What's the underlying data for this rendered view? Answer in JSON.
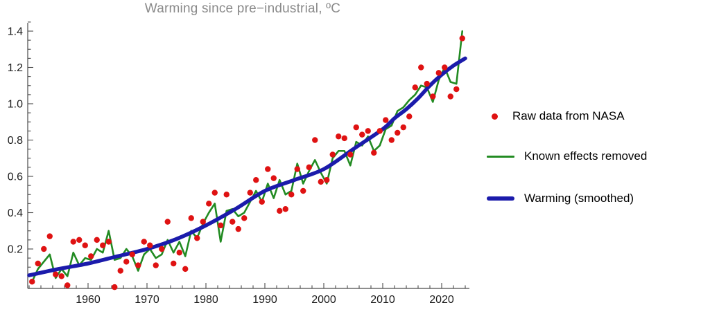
{
  "chart_data": {
    "type": "line+scatter",
    "title": "Warming since pre−industrial, ºC",
    "title_color": "#8a8a8a",
    "background": "#ffffff",
    "axis_color": "#4a4a4a",
    "tick_label_color": "#1c1c1c",
    "x_axis": {
      "range": [
        1949,
        2025
      ],
      "major_ticks": [
        1960,
        1970,
        1980,
        1990,
        2000,
        2010,
        2020
      ],
      "minor_tick_step_years": 2,
      "tick_span": [
        1950,
        2024
      ]
    },
    "y_axis": {
      "range": [
        -0.02,
        1.45
      ],
      "major_ticks": [
        0.2,
        0.4,
        0.6,
        0.8,
        1.0,
        1.2,
        1.4
      ],
      "major_tick_labels": [
        "0.2",
        "0.4",
        "0.6",
        "0.8",
        "1.0",
        "1.2",
        "1.4"
      ],
      "minor_tick_step": 0.05
    },
    "years": [
      1950,
      1951,
      1952,
      1953,
      1954,
      1955,
      1956,
      1957,
      1958,
      1959,
      1960,
      1961,
      1962,
      1963,
      1964,
      1965,
      1966,
      1967,
      1968,
      1969,
      1970,
      1971,
      1972,
      1973,
      1974,
      1975,
      1976,
      1977,
      1978,
      1979,
      1980,
      1981,
      1982,
      1983,
      1984,
      1985,
      1986,
      1987,
      1988,
      1989,
      1990,
      1991,
      1992,
      1993,
      1994,
      1995,
      1996,
      1997,
      1998,
      1999,
      2000,
      2001,
      2002,
      2003,
      2004,
      2005,
      2006,
      2007,
      2008,
      2009,
      2010,
      2011,
      2012,
      2013,
      2014,
      2015,
      2016,
      2017,
      2018,
      2019,
      2020,
      2021,
      2022,
      2023
    ],
    "series": [
      {
        "name": "Raw data from NASA",
        "type": "scatter",
        "color": "#df1212",
        "values": [
          0.02,
          0.12,
          0.2,
          0.27,
          0.06,
          0.05,
          0.0,
          0.24,
          0.25,
          0.22,
          0.16,
          0.25,
          0.22,
          0.24,
          -0.01,
          0.08,
          0.13,
          0.17,
          0.11,
          0.24,
          0.22,
          0.11,
          0.2,
          0.35,
          0.12,
          0.18,
          0.09,
          0.37,
          0.26,
          0.35,
          0.45,
          0.51,
          0.33,
          0.5,
          0.35,
          0.31,
          0.37,
          0.51,
          0.58,
          0.46,
          0.64,
          0.59,
          0.41,
          0.42,
          0.5,
          0.64,
          0.52,
          0.65,
          0.8,
          0.57,
          0.58,
          0.72,
          0.82,
          0.81,
          0.72,
          0.87,
          0.83,
          0.85,
          0.73,
          0.85,
          0.91,
          0.8,
          0.84,
          0.87,
          0.93,
          1.09,
          1.2,
          1.11,
          1.04,
          1.17,
          1.2,
          1.04,
          1.08,
          1.36
        ]
      },
      {
        "name": "Known effects removed",
        "type": "line",
        "color": "#228b22",
        "values": [
          0.02,
          0.09,
          0.13,
          0.17,
          0.04,
          0.09,
          0.05,
          0.18,
          0.11,
          0.15,
          0.14,
          0.2,
          0.18,
          0.3,
          0.14,
          0.15,
          0.2,
          0.16,
          0.08,
          0.17,
          0.2,
          0.15,
          0.17,
          0.25,
          0.18,
          0.24,
          0.16,
          0.3,
          0.26,
          0.34,
          0.4,
          0.45,
          0.24,
          0.41,
          0.42,
          0.38,
          0.4,
          0.46,
          0.52,
          0.46,
          0.56,
          0.48,
          0.58,
          0.5,
          0.52,
          0.67,
          0.56,
          0.63,
          0.69,
          0.62,
          0.56,
          0.7,
          0.74,
          0.74,
          0.66,
          0.79,
          0.77,
          0.82,
          0.74,
          0.77,
          0.86,
          0.88,
          0.96,
          0.98,
          1.02,
          1.05,
          1.1,
          1.09,
          1.01,
          1.13,
          1.2,
          1.12,
          1.11,
          1.4
        ]
      },
      {
        "name": "Warming (smoothed)",
        "type": "smooth-line",
        "color": "#1b1bab",
        "anchor_years": [
          1950,
          1955,
          1960,
          1965,
          1970,
          1975,
          1980,
          1985,
          1990,
          1995,
          2000,
          2005,
          2010,
          2012,
          2014,
          2016,
          2018,
          2020,
          2022,
          2024
        ],
        "anchor_values": [
          0.055,
          0.09,
          0.12,
          0.16,
          0.2,
          0.255,
          0.33,
          0.42,
          0.52,
          0.58,
          0.64,
          0.75,
          0.86,
          0.92,
          0.97,
          1.03,
          1.1,
          1.16,
          1.21,
          1.25
        ]
      }
    ],
    "legend_position": "right"
  }
}
